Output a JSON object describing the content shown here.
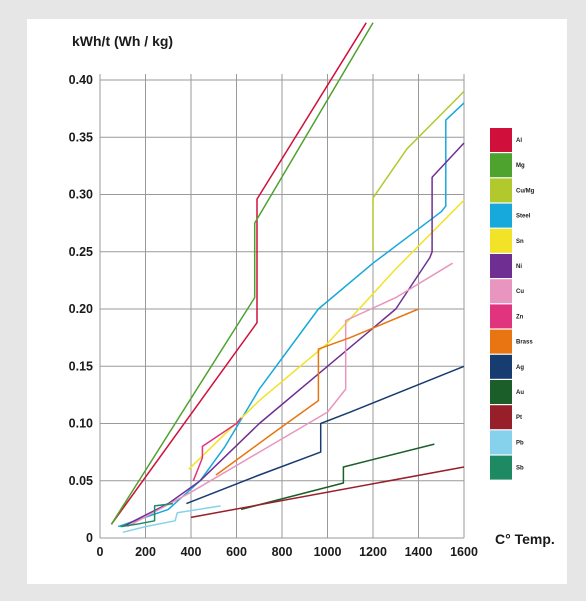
{
  "chart_data": {
    "type": "line",
    "ylabel": "kWh/t (Wh / kg)",
    "xlabel": "C° Temp.",
    "xlim": [
      0,
      1600
    ],
    "ylim": [
      0,
      0.4
    ],
    "xticks": [
      "0",
      "200",
      "400",
      "600",
      "800",
      "1000",
      "1200",
      "1400",
      "1600"
    ],
    "yticks": [
      "0",
      "0.05",
      "0.10",
      "0.15",
      "0.20",
      "0.25",
      "0.30",
      "0.35",
      "0.40"
    ],
    "ytick_values": [
      0,
      0.05,
      0.1,
      0.15,
      0.2,
      0.25,
      0.3,
      0.35,
      0.4
    ],
    "xtick_values": [
      0,
      200,
      400,
      600,
      800,
      1000,
      1200,
      1400,
      1600
    ],
    "grid": true,
    "legend_position": "right",
    "series": [
      {
        "name": "Al",
        "color": "#d0103a",
        "x": [
          50,
          690,
          690,
          1170
        ],
        "y": [
          0.012,
          0.188,
          0.296,
          0.45
        ]
      },
      {
        "name": "Mg",
        "color": "#4ea22e",
        "x": [
          50,
          680,
          680,
          1200
        ],
        "y": [
          0.012,
          0.21,
          0.275,
          0.45
        ]
      },
      {
        "name": "Cu/Mg",
        "color": "#b2c92d",
        "x": [
          1200,
          1200,
          1200,
          1350,
          1600
        ],
        "y": [
          0.25,
          0.28,
          0.297,
          0.34,
          0.39
        ]
      },
      {
        "name": "Steel",
        "color": "#17a8dc",
        "x": [
          80,
          300,
          440,
          550,
          700,
          960,
          1200,
          1500,
          1520,
          1520,
          1600
        ],
        "y": [
          0.01,
          0.025,
          0.05,
          0.08,
          0.13,
          0.2,
          0.24,
          0.285,
          0.29,
          0.365,
          0.38
        ]
      },
      {
        "name": "Sn",
        "color": "#f2e228",
        "x": [
          390,
          700,
          1000,
          1300,
          1600
        ],
        "y": [
          0.06,
          0.12,
          0.17,
          0.235,
          0.295
        ]
      },
      {
        "name": "Ni",
        "color": "#6f2f92",
        "x": [
          100,
          300,
          440,
          700,
          1000,
          1300,
          1450,
          1460,
          1460,
          1600
        ],
        "y": [
          0.01,
          0.03,
          0.05,
          0.1,
          0.15,
          0.2,
          0.245,
          0.25,
          0.315,
          0.345
        ]
      },
      {
        "name": "Cu",
        "color": "#e895bf",
        "x": [
          120,
          400,
          700,
          1000,
          1080,
          1080,
          1300,
          1550
        ],
        "y": [
          0.01,
          0.04,
          0.075,
          0.11,
          0.13,
          0.19,
          0.21,
          0.24
        ]
      },
      {
        "name": "Zn",
        "color": "#e0357e",
        "x": [
          410,
          450,
          450,
          600,
          620
        ],
        "y": [
          0.05,
          0.07,
          0.08,
          0.1,
          0.105
        ]
      },
      {
        "name": "Brass",
        "color": "#e87511",
        "x": [
          510,
          750,
          960,
          960,
          1100,
          1400
        ],
        "y": [
          0.055,
          0.09,
          0.12,
          0.165,
          0.175,
          0.2
        ]
      },
      {
        "name": "Ag",
        "color": "#163c70",
        "x": [
          380,
          700,
          970,
          970,
          1100,
          1600
        ],
        "y": [
          0.03,
          0.055,
          0.075,
          0.1,
          0.11,
          0.15
        ]
      },
      {
        "name": "Au",
        "color": "#1b5e2a",
        "x": [
          620,
          1070,
          1070,
          1470
        ],
        "y": [
          0.025,
          0.048,
          0.062,
          0.082
        ]
      },
      {
        "name": "Pt",
        "color": "#971f2a",
        "x": [
          400,
          1600
        ],
        "y": [
          0.018,
          0.062
        ]
      },
      {
        "name": "Pb",
        "color": "#86d2ec",
        "x": [
          100,
          200,
          330,
          340,
          530
        ],
        "y": [
          0.005,
          0.01,
          0.015,
          0.022,
          0.028
        ]
      },
      {
        "name": "Sb",
        "color": "#1e8a63",
        "x": [
          90,
          160,
          240,
          240,
          320
        ],
        "y": [
          0.01,
          0.012,
          0.015,
          0.028,
          0.03
        ]
      }
    ]
  }
}
